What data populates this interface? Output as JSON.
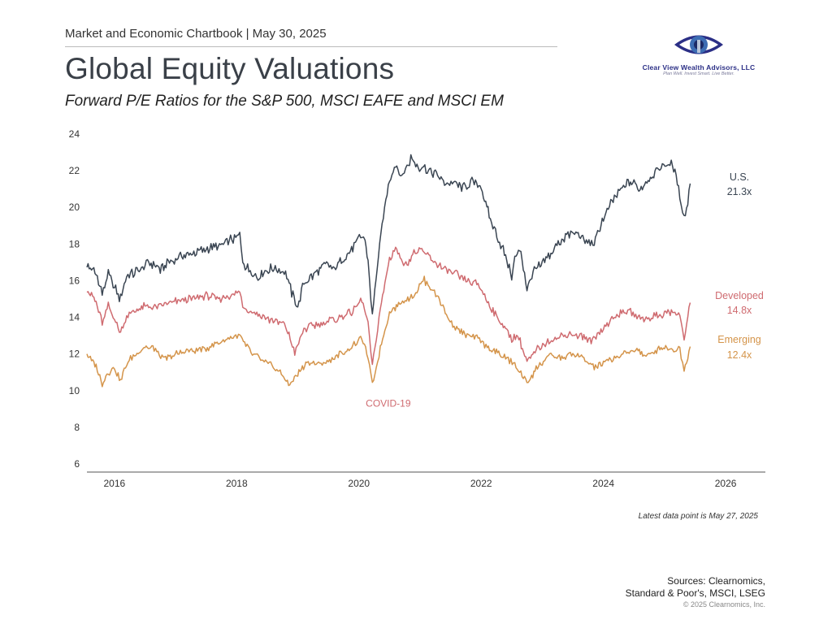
{
  "header": {
    "chartbook": "Market and Economic Chartbook | May 30, 2025",
    "title": "Global Equity Valuations",
    "subtitle": "Forward P/E Ratios for the S&P 500, MSCI EAFE and MSCI EM"
  },
  "logo": {
    "name": "Clear View Wealth Advisors, LLC",
    "tagline": "Plan Well. Invest Smart. Live Better."
  },
  "note": "Latest data point is May 27, 2025",
  "sources": {
    "line1": "Sources: Clearnomics,",
    "line2": "Standard & Poor's, MSCI, LSEG"
  },
  "copyright": "© 2025 Clearnomics, Inc.",
  "colors": {
    "us": "#3a4552",
    "developed": "#cf6b70",
    "emerging": "#d4944a",
    "annotation": "#cf6b70"
  },
  "chart_data": {
    "type": "line",
    "xlim": [
      2015.55,
      2026.65
    ],
    "ylim": [
      6,
      24
    ],
    "yticks": [
      6,
      8,
      10,
      12,
      14,
      16,
      18,
      20,
      22,
      24
    ],
    "xticks": [
      2016,
      2018,
      2020,
      2022,
      2024,
      2026
    ],
    "grid": false,
    "annotations": [
      {
        "text": "COVID-19",
        "x": 2020.4,
        "y": 9.3
      }
    ],
    "series": [
      {
        "key": "us",
        "name": "U.S.",
        "end_label": "21.3x",
        "points": [
          [
            2015.55,
            16.8
          ],
          [
            2015.7,
            16.4
          ],
          [
            2015.8,
            15.3
          ],
          [
            2015.9,
            16.4
          ],
          [
            2016.0,
            15.6
          ],
          [
            2016.1,
            15.0
          ],
          [
            2016.2,
            16.2
          ],
          [
            2016.35,
            16.5
          ],
          [
            2016.5,
            16.8
          ],
          [
            2016.6,
            17.0
          ],
          [
            2016.75,
            16.6
          ],
          [
            2016.9,
            17.1
          ],
          [
            2017.1,
            17.3
          ],
          [
            2017.3,
            17.5
          ],
          [
            2017.5,
            17.7
          ],
          [
            2017.7,
            17.9
          ],
          [
            2017.9,
            18.2
          ],
          [
            2018.05,
            18.5
          ],
          [
            2018.1,
            17.0
          ],
          [
            2018.2,
            16.6
          ],
          [
            2018.35,
            16.2
          ],
          [
            2018.5,
            16.6
          ],
          [
            2018.65,
            16.7
          ],
          [
            2018.8,
            16.4
          ],
          [
            2018.9,
            15.3
          ],
          [
            2019.0,
            14.6
          ],
          [
            2019.1,
            15.9
          ],
          [
            2019.3,
            16.4
          ],
          [
            2019.45,
            16.9
          ],
          [
            2019.6,
            16.6
          ],
          [
            2019.75,
            17.2
          ],
          [
            2019.9,
            17.8
          ],
          [
            2020.05,
            18.5
          ],
          [
            2020.1,
            18.3
          ],
          [
            2020.15,
            17.0
          ],
          [
            2020.22,
            14.1
          ],
          [
            2020.3,
            16.8
          ],
          [
            2020.4,
            19.5
          ],
          [
            2020.5,
            21.5
          ],
          [
            2020.6,
            22.4
          ],
          [
            2020.7,
            21.6
          ],
          [
            2020.85,
            22.7
          ],
          [
            2020.95,
            22.3
          ],
          [
            2021.1,
            22.1
          ],
          [
            2021.25,
            21.8
          ],
          [
            2021.4,
            21.4
          ],
          [
            2021.55,
            21.3
          ],
          [
            2021.7,
            21.0
          ],
          [
            2021.85,
            21.4
          ],
          [
            2022.0,
            21.1
          ],
          [
            2022.15,
            19.3
          ],
          [
            2022.3,
            18.2
          ],
          [
            2022.4,
            17.3
          ],
          [
            2022.5,
            16.3
          ],
          [
            2022.55,
            17.2
          ],
          [
            2022.65,
            17.6
          ],
          [
            2022.75,
            15.6
          ],
          [
            2022.85,
            16.5
          ],
          [
            2023.0,
            16.9
          ],
          [
            2023.2,
            17.8
          ],
          [
            2023.4,
            18.5
          ],
          [
            2023.55,
            18.6
          ],
          [
            2023.7,
            18.2
          ],
          [
            2023.85,
            18.0
          ],
          [
            2024.0,
            19.4
          ],
          [
            2024.2,
            20.6
          ],
          [
            2024.35,
            21.2
          ],
          [
            2024.5,
            21.4
          ],
          [
            2024.6,
            21.0
          ],
          [
            2024.75,
            21.6
          ],
          [
            2024.9,
            22.1
          ],
          [
            2025.05,
            22.4
          ],
          [
            2025.15,
            22.2
          ],
          [
            2025.25,
            20.7
          ],
          [
            2025.32,
            19.4
          ],
          [
            2025.38,
            20.3
          ],
          [
            2025.42,
            21.3
          ]
        ]
      },
      {
        "key": "developed",
        "name": "Developed",
        "end_label": "14.8x",
        "points": [
          [
            2015.55,
            15.6
          ],
          [
            2015.7,
            14.8
          ],
          [
            2015.8,
            13.7
          ],
          [
            2015.9,
            14.6
          ],
          [
            2016.0,
            14.0
          ],
          [
            2016.1,
            13.1
          ],
          [
            2016.2,
            14.1
          ],
          [
            2016.35,
            14.4
          ],
          [
            2016.5,
            14.6
          ],
          [
            2016.7,
            14.5
          ],
          [
            2016.9,
            14.8
          ],
          [
            2017.1,
            14.9
          ],
          [
            2017.3,
            15.0
          ],
          [
            2017.5,
            15.2
          ],
          [
            2017.7,
            15.0
          ],
          [
            2017.9,
            15.2
          ],
          [
            2018.05,
            15.4
          ],
          [
            2018.1,
            14.6
          ],
          [
            2018.25,
            14.3
          ],
          [
            2018.45,
            14.0
          ],
          [
            2018.6,
            13.8
          ],
          [
            2018.8,
            13.6
          ],
          [
            2018.95,
            12.1
          ],
          [
            2019.1,
            13.3
          ],
          [
            2019.3,
            13.6
          ],
          [
            2019.5,
            13.8
          ],
          [
            2019.7,
            14.0
          ],
          [
            2019.9,
            14.3
          ],
          [
            2020.05,
            15.0
          ],
          [
            2020.15,
            13.6
          ],
          [
            2020.22,
            11.3
          ],
          [
            2020.35,
            14.5
          ],
          [
            2020.5,
            17.2
          ],
          [
            2020.6,
            17.8
          ],
          [
            2020.75,
            16.8
          ],
          [
            2020.9,
            17.5
          ],
          [
            2021.05,
            17.6
          ],
          [
            2021.2,
            17.2
          ],
          [
            2021.35,
            16.7
          ],
          [
            2021.55,
            16.4
          ],
          [
            2021.75,
            16.0
          ],
          [
            2021.95,
            15.8
          ],
          [
            2022.1,
            14.9
          ],
          [
            2022.25,
            14.0
          ],
          [
            2022.4,
            13.4
          ],
          [
            2022.5,
            12.8
          ],
          [
            2022.6,
            13.0
          ],
          [
            2022.75,
            11.6
          ],
          [
            2022.9,
            12.2
          ],
          [
            2023.05,
            12.6
          ],
          [
            2023.25,
            12.9
          ],
          [
            2023.45,
            13.1
          ],
          [
            2023.6,
            13.0
          ],
          [
            2023.8,
            12.7
          ],
          [
            2024.0,
            13.4
          ],
          [
            2024.2,
            14.1
          ],
          [
            2024.4,
            14.4
          ],
          [
            2024.55,
            14.0
          ],
          [
            2024.7,
            13.9
          ],
          [
            2024.85,
            14.1
          ],
          [
            2025.0,
            14.2
          ],
          [
            2025.15,
            14.3
          ],
          [
            2025.25,
            14.1
          ],
          [
            2025.32,
            12.8
          ],
          [
            2025.38,
            14.1
          ],
          [
            2025.42,
            14.8
          ]
        ]
      },
      {
        "key": "emerging",
        "name": "Emerging",
        "end_label": "12.4x",
        "points": [
          [
            2015.55,
            12.0
          ],
          [
            2015.7,
            11.3
          ],
          [
            2015.8,
            10.4
          ],
          [
            2015.9,
            11.0
          ],
          [
            2016.0,
            11.3
          ],
          [
            2016.1,
            10.5
          ],
          [
            2016.2,
            11.5
          ],
          [
            2016.35,
            12.0
          ],
          [
            2016.5,
            12.4
          ],
          [
            2016.65,
            12.3
          ],
          [
            2016.8,
            11.7
          ],
          [
            2016.95,
            11.9
          ],
          [
            2017.1,
            12.1
          ],
          [
            2017.3,
            12.2
          ],
          [
            2017.5,
            12.3
          ],
          [
            2017.7,
            12.6
          ],
          [
            2017.9,
            12.9
          ],
          [
            2018.05,
            13.0
          ],
          [
            2018.15,
            12.4
          ],
          [
            2018.3,
            11.9
          ],
          [
            2018.45,
            11.6
          ],
          [
            2018.6,
            11.3
          ],
          [
            2018.75,
            10.9
          ],
          [
            2018.85,
            10.3
          ],
          [
            2019.0,
            10.9
          ],
          [
            2019.15,
            11.6
          ],
          [
            2019.3,
            11.4
          ],
          [
            2019.5,
            11.6
          ],
          [
            2019.7,
            12.0
          ],
          [
            2019.9,
            12.4
          ],
          [
            2020.05,
            12.9
          ],
          [
            2020.15,
            11.8
          ],
          [
            2020.22,
            10.3
          ],
          [
            2020.35,
            12.3
          ],
          [
            2020.5,
            14.3
          ],
          [
            2020.65,
            14.7
          ],
          [
            2020.8,
            15.0
          ],
          [
            2020.95,
            15.4
          ],
          [
            2021.05,
            16.1
          ],
          [
            2021.15,
            15.7
          ],
          [
            2021.3,
            15.1
          ],
          [
            2021.45,
            14.0
          ],
          [
            2021.6,
            13.4
          ],
          [
            2021.75,
            13.0
          ],
          [
            2021.95,
            12.8
          ],
          [
            2022.1,
            12.4
          ],
          [
            2022.25,
            12.1
          ],
          [
            2022.4,
            11.8
          ],
          [
            2022.55,
            11.4
          ],
          [
            2022.75,
            10.4
          ],
          [
            2022.9,
            11.2
          ],
          [
            2023.1,
            11.9
          ],
          [
            2023.3,
            11.8
          ],
          [
            2023.5,
            12.0
          ],
          [
            2023.7,
            11.7
          ],
          [
            2023.85,
            11.3
          ],
          [
            2024.0,
            11.5
          ],
          [
            2024.2,
            11.8
          ],
          [
            2024.4,
            12.1
          ],
          [
            2024.55,
            12.3
          ],
          [
            2024.7,
            11.8
          ],
          [
            2024.85,
            12.2
          ],
          [
            2025.0,
            12.4
          ],
          [
            2025.15,
            12.2
          ],
          [
            2025.25,
            12.3
          ],
          [
            2025.32,
            11.1
          ],
          [
            2025.38,
            11.9
          ],
          [
            2025.42,
            12.4
          ]
        ]
      }
    ]
  }
}
